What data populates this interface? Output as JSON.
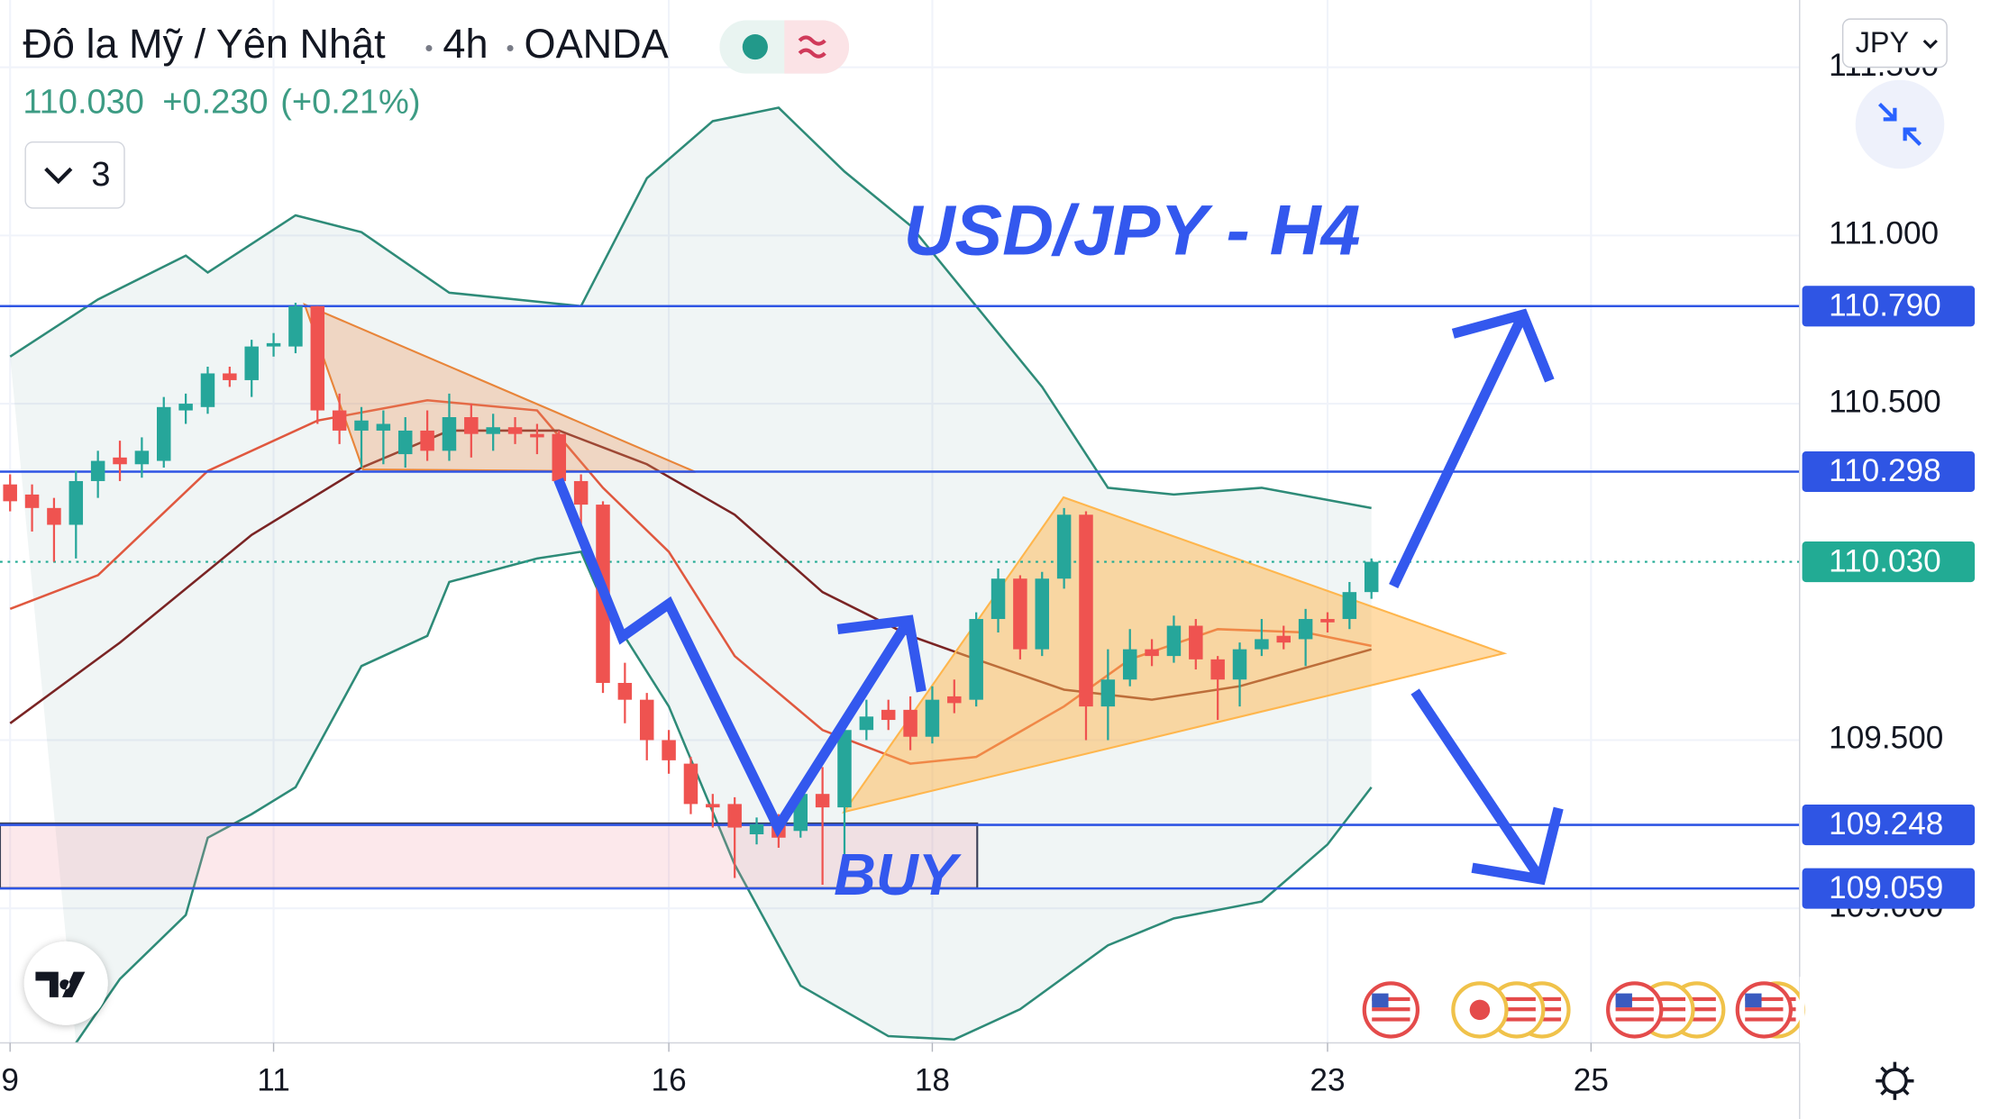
{
  "header": {
    "symbol": "Đô la Mỹ / Yên Nhật",
    "interval": "4h",
    "exchange": "OANDA",
    "last": "110.030",
    "change": "+0.230",
    "change_pct": "(+0.21%)"
  },
  "indicator_count": "3",
  "currency": "JPY",
  "annotations": {
    "title": "USD/JPY - H4",
    "buy": "BUY"
  },
  "chart_data": {
    "type": "candlestick",
    "up_color": "#26a69a",
    "down_color": "#ef5350",
    "x": [
      0,
      1,
      2,
      3,
      4,
      5,
      6,
      7,
      8,
      9,
      10,
      11,
      12,
      13,
      14,
      15,
      16,
      17,
      18,
      19,
      20,
      21,
      22,
      23,
      24,
      25,
      26,
      27,
      28,
      29,
      30,
      31,
      32,
      33,
      34,
      35,
      36,
      37,
      38,
      39,
      40,
      41,
      42,
      43,
      44,
      45,
      46,
      47,
      48,
      49,
      50,
      51,
      52,
      53,
      54,
      55,
      56,
      57,
      58,
      59,
      60,
      61,
      62
    ],
    "open": [
      110.26,
      110.23,
      110.19,
      110.14,
      110.27,
      110.34,
      110.32,
      110.33,
      110.48,
      110.49,
      110.59,
      110.57,
      110.67,
      110.67,
      110.79,
      110.48,
      110.42,
      110.42,
      110.35,
      110.42,
      110.36,
      110.46,
      110.41,
      110.43,
      110.41,
      110.41,
      110.27,
      110.2,
      109.67,
      109.62,
      109.5,
      109.43,
      109.31,
      109.31,
      109.22,
      109.25,
      109.23,
      109.34,
      109.3,
      109.53,
      109.59,
      109.59,
      109.51,
      109.63,
      109.62,
      109.86,
      109.98,
      109.77,
      109.98,
      110.17,
      109.6,
      109.68,
      109.77,
      109.75,
      109.84,
      109.74,
      109.68,
      109.77,
      109.81,
      109.8,
      109.86,
      109.86,
      109.94
    ],
    "high": [
      110.29,
      110.26,
      110.22,
      110.3,
      110.36,
      110.39,
      110.4,
      110.52,
      110.53,
      110.61,
      110.61,
      110.69,
      110.71,
      110.8,
      110.79,
      110.53,
      110.49,
      110.48,
      110.46,
      110.48,
      110.53,
      110.5,
      110.47,
      110.46,
      110.44,
      110.42,
      110.29,
      110.21,
      109.73,
      109.64,
      109.53,
      109.45,
      109.34,
      109.33,
      109.27,
      109.28,
      109.36,
      109.42,
      109.55,
      109.62,
      109.62,
      109.63,
      109.66,
      109.68,
      109.88,
      110.01,
      109.99,
      110.0,
      110.19,
      110.18,
      109.77,
      109.83,
      109.8,
      109.87,
      109.86,
      109.75,
      109.79,
      109.86,
      109.84,
      109.89,
      109.88,
      109.97,
      110.04
    ],
    "low": [
      110.18,
      110.12,
      110.03,
      110.04,
      110.22,
      110.27,
      110.28,
      110.31,
      110.44,
      110.47,
      110.55,
      110.52,
      110.64,
      110.65,
      110.44,
      110.38,
      110.31,
      110.32,
      110.31,
      110.33,
      110.33,
      110.34,
      110.36,
      110.38,
      110.35,
      110.25,
      110.14,
      109.64,
      109.55,
      109.44,
      109.4,
      109.28,
      109.24,
      109.09,
      109.19,
      109.18,
      109.21,
      109.07,
      109.15,
      109.5,
      109.53,
      109.47,
      109.49,
      109.58,
      109.6,
      109.82,
      109.74,
      109.75,
      109.95,
      109.5,
      109.5,
      109.66,
      109.72,
      109.73,
      109.71,
      109.56,
      109.6,
      109.75,
      109.77,
      109.72,
      109.82,
      109.83,
      109.92
    ],
    "close": [
      110.21,
      110.19,
      110.14,
      110.27,
      110.33,
      110.32,
      110.36,
      110.49,
      110.5,
      110.59,
      110.57,
      110.67,
      110.68,
      110.79,
      110.48,
      110.42,
      110.45,
      110.44,
      110.42,
      110.36,
      110.46,
      110.41,
      110.43,
      110.41,
      110.4,
      110.27,
      110.2,
      109.67,
      109.62,
      109.5,
      109.44,
      109.31,
      109.3,
      109.24,
      109.25,
      109.21,
      109.34,
      109.3,
      109.53,
      109.57,
      109.56,
      109.51,
      109.62,
      109.61,
      109.86,
      109.98,
      109.77,
      109.98,
      110.17,
      109.6,
      109.68,
      109.77,
      109.75,
      109.84,
      109.74,
      109.68,
      109.77,
      109.8,
      109.79,
      109.86,
      109.85,
      109.94,
      110.03
    ],
    "overlays": [
      {
        "color": "#2e8b78",
        "x": [
          0,
          4,
          8,
          9,
          13,
          16,
          20,
          26,
          29,
          32,
          35,
          38,
          41,
          44,
          47,
          50,
          53,
          57,
          62
        ],
        "values": [
          110.64,
          110.81,
          110.94,
          110.89,
          111.06,
          111.01,
          110.83,
          110.79,
          111.17,
          111.34,
          111.38,
          111.19,
          111.03,
          110.79,
          110.55,
          110.25,
          110.23,
          110.25,
          110.19
        ]
      },
      {
        "color": "#2e8b78",
        "x": [
          3,
          5,
          8,
          9,
          11,
          13,
          16,
          19,
          20,
          24,
          26,
          27,
          30,
          33,
          36,
          40,
          43,
          46,
          50,
          53,
          57,
          60,
          62
        ],
        "values": [
          108.6,
          108.79,
          108.98,
          109.21,
          109.28,
          109.36,
          109.72,
          109.81,
          109.97,
          110.04,
          110.06,
          109.91,
          109.6,
          109.13,
          108.77,
          108.62,
          108.61,
          108.7,
          108.89,
          108.97,
          109.02,
          109.19,
          109.36
        ]
      },
      {
        "color": "#e0583f",
        "x": [
          0,
          4,
          9,
          14,
          19,
          24,
          27,
          30,
          33,
          37,
          41,
          44,
          48,
          51,
          55,
          59,
          62
        ],
        "values": [
          109.89,
          109.99,
          110.3,
          110.45,
          110.51,
          110.48,
          110.25,
          110.06,
          109.75,
          109.53,
          109.43,
          109.45,
          109.6,
          109.74,
          109.83,
          109.82,
          109.78
        ]
      },
      {
        "color": "#7a2424",
        "x": [
          0,
          5,
          11,
          16,
          20,
          25,
          29,
          33,
          37,
          41,
          44,
          48,
          52,
          56,
          62
        ],
        "values": [
          109.55,
          109.79,
          110.11,
          110.31,
          110.42,
          110.42,
          110.32,
          110.17,
          109.94,
          109.81,
          109.74,
          109.65,
          109.62,
          109.66,
          109.77
        ]
      }
    ],
    "levels": [
      {
        "value": 110.79,
        "label": "110.790"
      },
      {
        "value": 110.298,
        "label": "110.298"
      },
      {
        "value": 109.248,
        "label": "109.248"
      },
      {
        "value": 109.059,
        "label": "109.059"
      }
    ],
    "level_color": "#2f55e4",
    "last_price": {
      "value": 110.03,
      "label": "110.030"
    },
    "last_color": "#22ab94",
    "xlim": [
      -0.46,
      81.5
    ],
    "ylim": [
      108.6,
      111.7
    ],
    "xticks": [
      {
        "value": 0,
        "label": "9"
      },
      {
        "value": 12,
        "label": "11"
      },
      {
        "value": 30,
        "label": "16"
      },
      {
        "value": 42,
        "label": "18"
      },
      {
        "value": 60,
        "label": "23"
      },
      {
        "value": 72,
        "label": "25"
      }
    ],
    "yticks": [
      {
        "value": 111.5,
        "label": "111.500"
      },
      {
        "value": 111,
        "label": "111.000"
      },
      {
        "value": 110.5,
        "label": "110.500"
      },
      {
        "value": 109.5,
        "label": "109.500"
      },
      {
        "value": 109,
        "label": "109.000"
      }
    ],
    "grid": true
  }
}
